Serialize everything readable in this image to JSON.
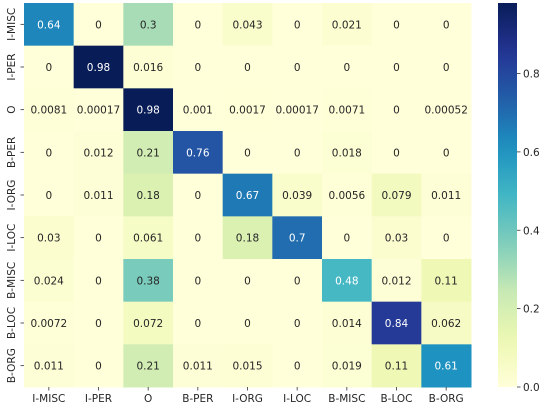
{
  "chart_data": {
    "type": "heatmap",
    "title": "",
    "xlabel": "",
    "ylabel": "",
    "x_categories": [
      "I-MISC",
      "I-PER",
      "O",
      "B-PER",
      "I-ORG",
      "I-LOC",
      "B-MISC",
      "B-LOC",
      "B-ORG"
    ],
    "y_categories": [
      "I-MISC",
      "I-PER",
      "O",
      "B-PER",
      "I-ORG",
      "I-LOC",
      "B-MISC",
      "B-LOC",
      "B-ORG"
    ],
    "values": [
      [
        0.64,
        0,
        0.3,
        0,
        0.043,
        0,
        0.021,
        0,
        0
      ],
      [
        0,
        0.98,
        0.016,
        0,
        0,
        0,
        0,
        0,
        0
      ],
      [
        0.0081,
        0.00017,
        0.98,
        0.001,
        0.0017,
        0.00017,
        0.0071,
        0,
        0.00052
      ],
      [
        0,
        0.012,
        0.21,
        0.76,
        0,
        0,
        0.018,
        0,
        0
      ],
      [
        0,
        0.011,
        0.18,
        0,
        0.67,
        0.039,
        0.0056,
        0.079,
        0.011
      ],
      [
        0.03,
        0,
        0.061,
        0,
        0.18,
        0.7,
        0,
        0.03,
        0
      ],
      [
        0.024,
        0,
        0.38,
        0,
        0,
        0,
        0.48,
        0.012,
        0.11
      ],
      [
        0.0072,
        0,
        0.072,
        0,
        0,
        0,
        0.014,
        0.84,
        0.062
      ],
      [
        0.011,
        0,
        0.21,
        0.011,
        0.015,
        0,
        0.019,
        0.11,
        0.61
      ]
    ],
    "labels": [
      [
        "0.64",
        "0",
        "0.3",
        "0",
        "0.043",
        "0",
        "0.021",
        "0",
        "0"
      ],
      [
        "0",
        "0.98",
        "0.016",
        "0",
        "0",
        "0",
        "0",
        "0",
        "0"
      ],
      [
        "0.0081",
        "0.00017",
        "0.98",
        "0.001",
        "0.0017",
        "0.00017",
        "0.0071",
        "0",
        "0.00052"
      ],
      [
        "0",
        "0.012",
        "0.21",
        "0.76",
        "0",
        "0",
        "0.018",
        "0",
        "0"
      ],
      [
        "0",
        "0.011",
        "0.18",
        "0",
        "0.67",
        "0.039",
        "0.0056",
        "0.079",
        "0.011"
      ],
      [
        "0.03",
        "0",
        "0.061",
        "0",
        "0.18",
        "0.7",
        "0",
        "0.03",
        "0"
      ],
      [
        "0.024",
        "0",
        "0.38",
        "0",
        "0",
        "0",
        "0.48",
        "0.012",
        "0.11"
      ],
      [
        "0.0072",
        "0",
        "0.072",
        "0",
        "0",
        "0",
        "0.014",
        "0.84",
        "0.062"
      ],
      [
        "0.011",
        "0",
        "0.21",
        "0.011",
        "0.015",
        "0",
        "0.019",
        "0.11",
        "0.61"
      ]
    ],
    "colormap": "YlGnBu",
    "vmin": 0,
    "vmax": 0.98,
    "colorbar_ticks": [
      {
        "value": 0.0,
        "label": "0.0"
      },
      {
        "value": 0.2,
        "label": "0.2"
      },
      {
        "value": 0.4,
        "label": "0.4"
      },
      {
        "value": 0.6,
        "label": "0.6"
      },
      {
        "value": 0.8,
        "label": "0.8"
      }
    ],
    "legend": "colorbar-right",
    "grid": false
  }
}
